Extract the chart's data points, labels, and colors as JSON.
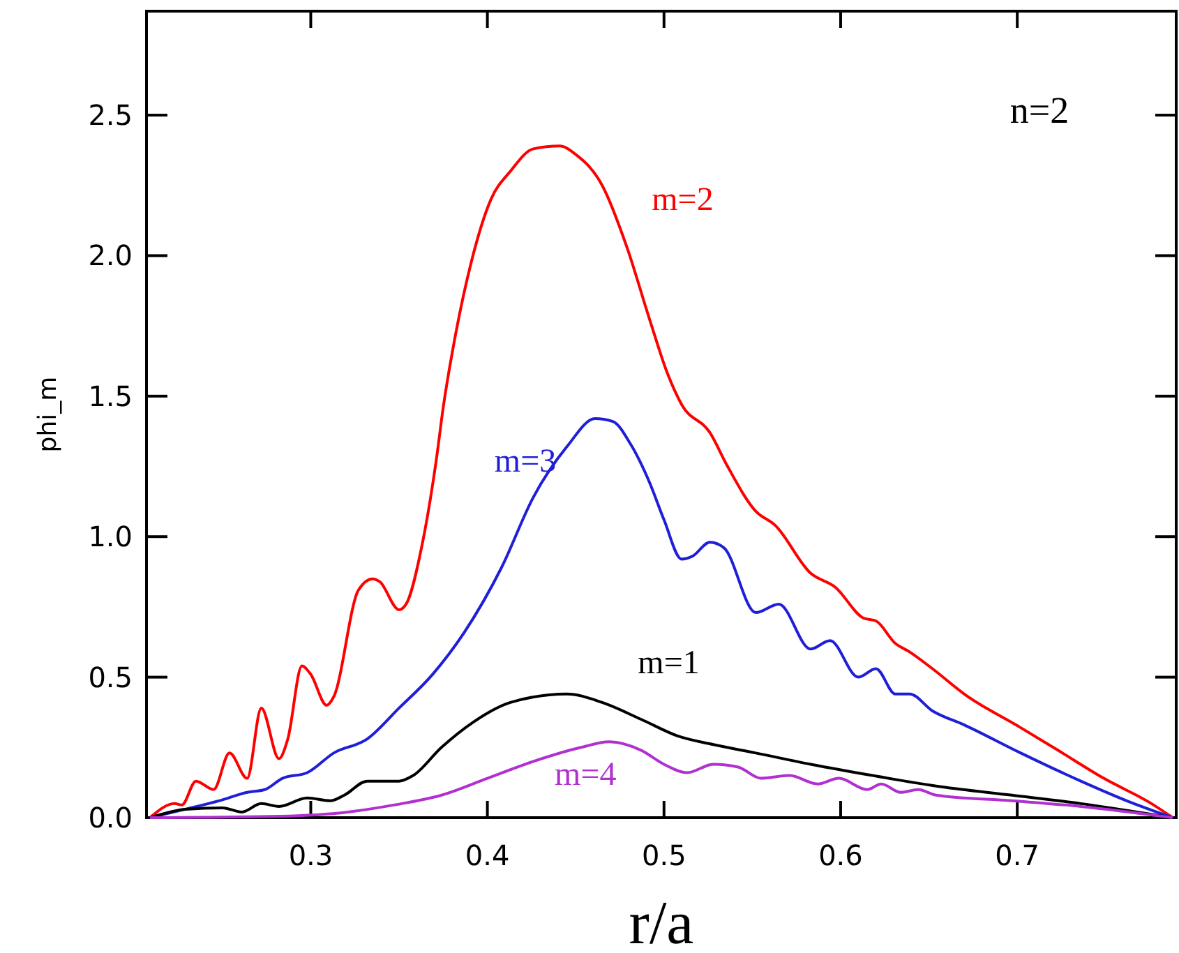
{
  "chart_data": {
    "type": "line",
    "xlabel": "r/a",
    "ylabel": "phi_m",
    "annotations": [
      "n=2"
    ],
    "xlim": [
      0.207,
      0.79
    ],
    "xticks": [
      0.3,
      0.4,
      0.5,
      0.6,
      0.7
    ],
    "ylim": [
      0,
      2.87
    ],
    "yticks": [
      {
        "value": 0,
        "label": "0.0"
      },
      {
        "value": 0.5,
        "label": "0.5"
      },
      {
        "value": 1,
        "label": "1.0"
      },
      {
        "value": 1.5,
        "label": "1.5"
      },
      {
        "value": 2,
        "label": "2.0"
      },
      {
        "value": 2.5,
        "label": "2.5"
      }
    ],
    "marker": "none",
    "line_style": "solid",
    "series": [
      {
        "name": "m=2",
        "color": "#ff0000",
        "x": [
          0.209,
          0.223,
          0.227,
          0.235,
          0.245,
          0.254,
          0.264,
          0.272,
          0.282,
          0.287,
          0.295,
          0.3,
          0.309,
          0.313,
          0.327,
          0.335,
          0.339,
          0.35,
          0.354,
          0.363,
          0.371,
          0.375,
          0.382,
          0.391,
          0.402,
          0.413,
          0.426,
          0.441,
          0.45,
          0.465,
          0.479,
          0.492,
          0.502,
          0.51,
          0.526,
          0.536,
          0.552,
          0.563,
          0.583,
          0.597,
          0.613,
          0.62,
          0.631,
          0.639,
          0.652,
          0.67,
          0.702,
          0.723,
          0.749,
          0.776,
          0.788
        ],
        "values": [
          0,
          0.05,
          0.045,
          0.13,
          0.1,
          0.23,
          0.14,
          0.39,
          0.21,
          0.28,
          0.54,
          0.51,
          0.4,
          0.43,
          0.81,
          0.85,
          0.84,
          0.74,
          0.76,
          0.97,
          1.27,
          1.46,
          1.72,
          1.98,
          2.2,
          2.3,
          2.38,
          2.39,
          2.36,
          2.25,
          2.03,
          1.77,
          1.58,
          1.47,
          1.37,
          1.25,
          1.09,
          1.04,
          0.87,
          0.82,
          0.71,
          0.7,
          0.62,
          0.59,
          0.53,
          0.44,
          0.32,
          0.24,
          0.14,
          0.05,
          0
        ]
      },
      {
        "name": "m=3",
        "color": "#1f1fd8",
        "x": [
          0.209,
          0.229,
          0.248,
          0.264,
          0.274,
          0.284,
          0.298,
          0.313,
          0.332,
          0.35,
          0.369,
          0.387,
          0.408,
          0.426,
          0.445,
          0.461,
          0.471,
          0.481,
          0.492,
          0.5,
          0.51,
          0.516,
          0.526,
          0.534,
          0.552,
          0.565,
          0.583,
          0.594,
          0.61,
          0.62,
          0.631,
          0.639,
          0.652,
          0.67,
          0.702,
          0.736,
          0.762,
          0.788
        ],
        "values": [
          0,
          0.03,
          0.06,
          0.09,
          0.1,
          0.14,
          0.16,
          0.23,
          0.28,
          0.39,
          0.51,
          0.66,
          0.89,
          1.14,
          1.32,
          1.42,
          1.41,
          1.33,
          1.19,
          1.06,
          0.92,
          0.93,
          0.98,
          0.96,
          0.73,
          0.76,
          0.6,
          0.63,
          0.5,
          0.53,
          0.44,
          0.44,
          0.38,
          0.33,
          0.23,
          0.13,
          0.06,
          0
        ]
      },
      {
        "name": "m=1",
        "color": "#000000",
        "x": [
          0.209,
          0.229,
          0.25,
          0.261,
          0.272,
          0.282,
          0.298,
          0.311,
          0.319,
          0.332,
          0.35,
          0.358,
          0.374,
          0.392,
          0.413,
          0.445,
          0.465,
          0.487,
          0.508,
          0.528,
          0.552,
          0.583,
          0.618,
          0.657,
          0.697,
          0.736,
          0.788
        ],
        "values": [
          0,
          0.03,
          0.035,
          0.02,
          0.05,
          0.04,
          0.07,
          0.06,
          0.08,
          0.13,
          0.13,
          0.15,
          0.25,
          0.34,
          0.41,
          0.44,
          0.41,
          0.35,
          0.29,
          0.26,
          0.23,
          0.19,
          0.15,
          0.11,
          0.08,
          0.05,
          0
        ]
      },
      {
        "name": "m=4",
        "color": "#b030d0",
        "x": [
          0.209,
          0.282,
          0.321,
          0.347,
          0.374,
          0.4,
          0.426,
          0.453,
          0.469,
          0.487,
          0.5,
          0.513,
          0.528,
          0.542,
          0.555,
          0.571,
          0.587,
          0.599,
          0.615,
          0.623,
          0.634,
          0.644,
          0.654,
          0.697,
          0.736,
          0.788
        ],
        "values": [
          0,
          0.005,
          0.02,
          0.045,
          0.08,
          0.14,
          0.2,
          0.25,
          0.27,
          0.24,
          0.19,
          0.16,
          0.19,
          0.18,
          0.14,
          0.15,
          0.12,
          0.14,
          0.1,
          0.12,
          0.09,
          0.1,
          0.08,
          0.06,
          0.04,
          0
        ]
      }
    ]
  }
}
